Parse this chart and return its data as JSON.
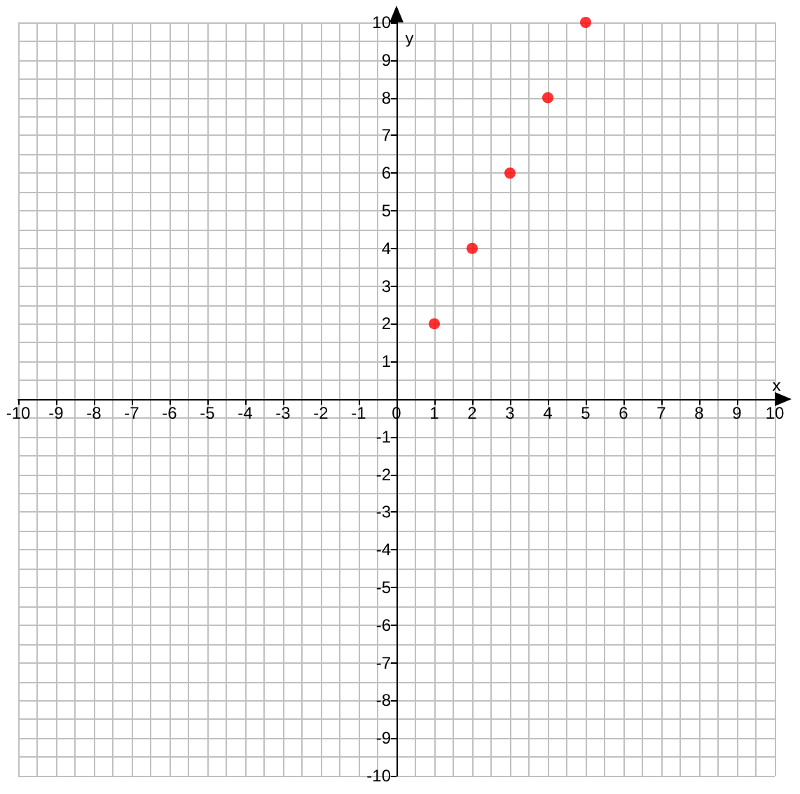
{
  "chart_data": {
    "type": "scatter",
    "xlabel": "x",
    "ylabel": "y",
    "x": [
      1,
      2,
      3,
      4,
      5
    ],
    "series": [
      {
        "color": "#ff0000",
        "values": [
          2,
          4,
          6,
          8,
          10
        ]
      }
    ],
    "xlim": [
      -10,
      10
    ],
    "ylim": [
      -10,
      10
    ],
    "xticks": [
      -10,
      -9,
      -8,
      -7,
      -6,
      -5,
      -4,
      -3,
      -2,
      -1,
      0,
      1,
      2,
      3,
      4,
      5,
      6,
      7,
      8,
      9,
      10
    ],
    "yticks": [
      -10,
      -9,
      -8,
      -7,
      -6,
      -5,
      -4,
      -3,
      -2,
      -1,
      1,
      2,
      3,
      4,
      5,
      6,
      7,
      8,
      9,
      10
    ],
    "grid": true,
    "marker": "circle"
  }
}
